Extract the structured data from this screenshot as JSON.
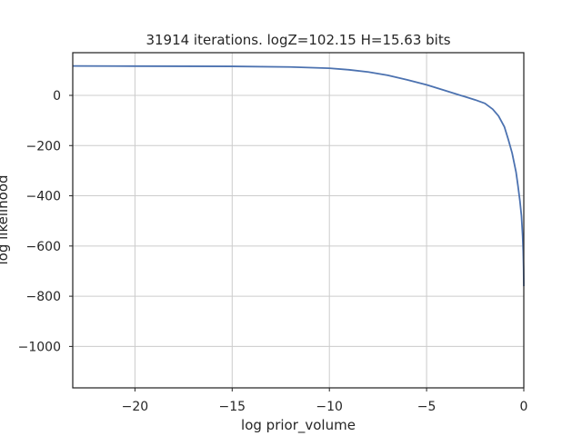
{
  "chart_data": {
    "type": "line",
    "title": "31914 iterations. logZ=102.15 H=15.63 bits",
    "xlabel": "log prior_volume",
    "ylabel": "log likelihood",
    "xlim": [
      -23.2,
      0
    ],
    "ylim": [
      -1165,
      170
    ],
    "xticks": [
      -20,
      -15,
      -10,
      -5,
      0
    ],
    "xtick_labels": [
      "−20",
      "−15",
      "−10",
      "−5",
      "0"
    ],
    "yticks": [
      0,
      -200,
      -400,
      -600,
      -800,
      -1000
    ],
    "ytick_labels": [
      "0",
      "−200",
      "−400",
      "−600",
      "−800",
      "−1000"
    ],
    "grid": true,
    "series": [
      {
        "color": "#4c72b0",
        "x": [
          -23.2,
          -20,
          -15,
          -12,
          -10,
          -9,
          -8,
          -7,
          -6,
          -5,
          -4,
          -3,
          -2.5,
          -2,
          -1.6,
          -1.3,
          -1.0,
          -0.8,
          -0.6,
          -0.4,
          -0.3,
          -0.2,
          -0.12,
          -0.06,
          -0.03,
          -0.01,
          0
        ],
        "y": [
          117,
          116.5,
          115.5,
          113,
          108,
          102,
          93,
          80,
          62,
          42,
          18,
          -6,
          -18,
          -32,
          -55,
          -82,
          -125,
          -175,
          -230,
          -305,
          -360,
          -420,
          -480,
          -560,
          -620,
          -690,
          -760
        ]
      }
    ]
  }
}
